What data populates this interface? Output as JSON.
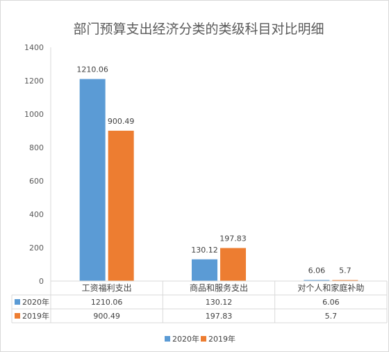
{
  "chart_data": {
    "type": "bar",
    "title": "部门预算支出经济分类的类级科目对比明细",
    "categories": [
      "工资福利支出",
      "商品和服务支出",
      "对个人和家庭补助"
    ],
    "series": [
      {
        "name": "2020年",
        "color": "#5b9bd5",
        "values": [
          1210.06,
          130.12,
          6.06
        ],
        "labels": [
          "1210.06",
          "130.12",
          "6.06"
        ]
      },
      {
        "name": "2019年",
        "color": "#ed7d31",
        "values": [
          900.49,
          197.83,
          5.7
        ],
        "labels": [
          "900.49",
          "197.83",
          "5.7"
        ]
      }
    ],
    "ylim": [
      0,
      1400
    ],
    "yticks": [
      0,
      200,
      400,
      600,
      800,
      1000,
      1200,
      1400
    ],
    "grid": false,
    "legend": "bottom",
    "data_table": true
  }
}
